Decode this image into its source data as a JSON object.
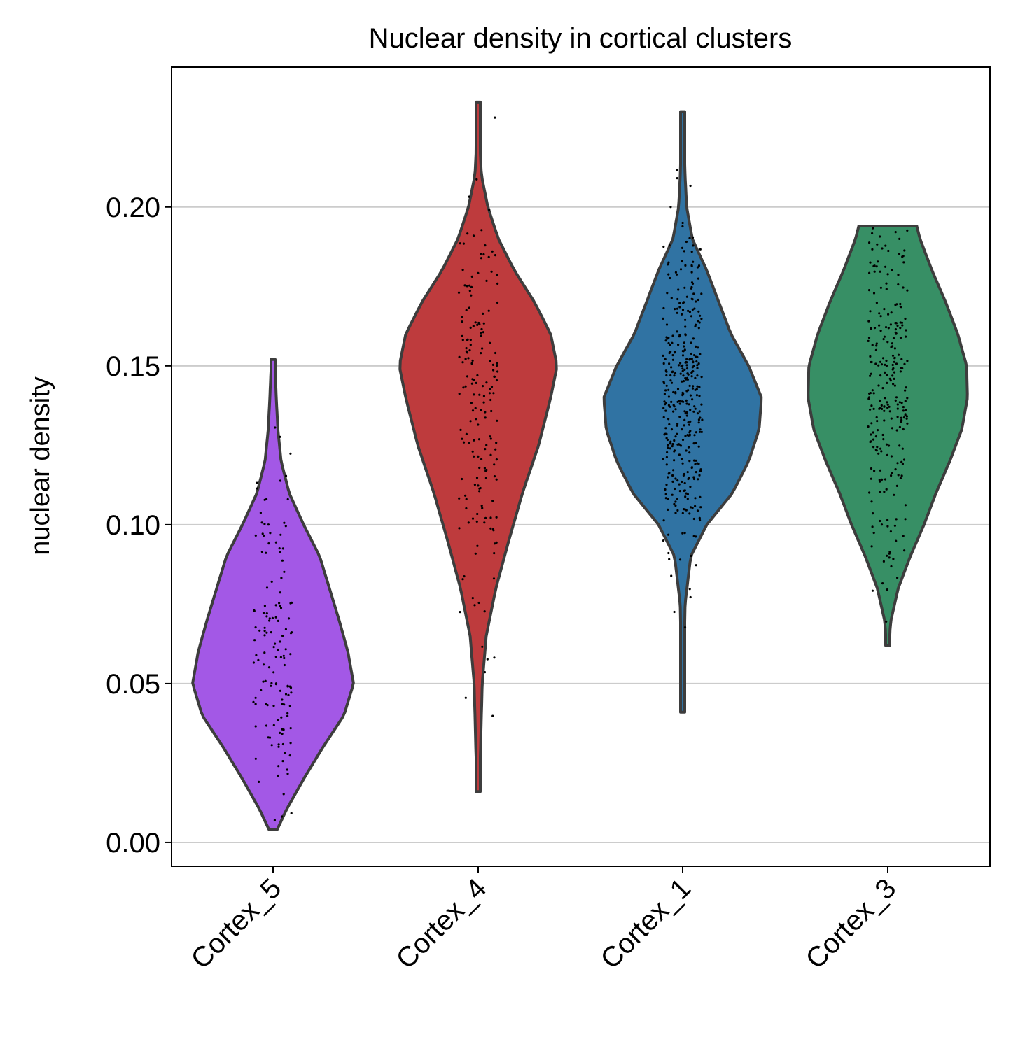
{
  "chart_data": {
    "type": "violin",
    "title": "Nuclear density in cortical clusters",
    "xlabel": "",
    "ylabel": "nuclear density",
    "ylim": [
      -0.0075,
      0.244
    ],
    "yticks": [
      0.0,
      0.05,
      0.1,
      0.15,
      0.2
    ],
    "ytick_labels": [
      "0.00",
      "0.05",
      "0.10",
      "0.15",
      "0.20"
    ],
    "grid": "horizontal",
    "categories": [
      "Cortex_5",
      "Cortex_4",
      "Cortex_1",
      "Cortex_3"
    ],
    "colors": [
      "#a358e6",
      "#be3b3d",
      "#3073a3",
      "#378f65"
    ],
    "series": [
      {
        "category": "Cortex_5",
        "min": 0.004,
        "max": 0.152,
        "n_points": 140,
        "density_profile": [
          [
            0.004,
            0.05
          ],
          [
            0.01,
            0.16
          ],
          [
            0.02,
            0.38
          ],
          [
            0.03,
            0.62
          ],
          [
            0.04,
            0.88
          ],
          [
            0.05,
            1.0
          ],
          [
            0.06,
            0.93
          ],
          [
            0.07,
            0.82
          ],
          [
            0.08,
            0.7
          ],
          [
            0.09,
            0.58
          ],
          [
            0.1,
            0.38
          ],
          [
            0.11,
            0.2
          ],
          [
            0.12,
            0.1
          ],
          [
            0.13,
            0.06
          ],
          [
            0.14,
            0.04
          ],
          [
            0.152,
            0.02
          ]
        ]
      },
      {
        "category": "Cortex_4",
        "min": 0.016,
        "max": 0.233,
        "n_points": 180,
        "density_profile": [
          [
            0.016,
            0.01
          ],
          [
            0.03,
            0.03
          ],
          [
            0.05,
            0.05
          ],
          [
            0.065,
            0.1
          ],
          [
            0.08,
            0.22
          ],
          [
            0.095,
            0.38
          ],
          [
            0.11,
            0.55
          ],
          [
            0.125,
            0.75
          ],
          [
            0.14,
            0.9
          ],
          [
            0.15,
            0.98
          ],
          [
            0.16,
            0.9
          ],
          [
            0.17,
            0.7
          ],
          [
            0.18,
            0.45
          ],
          [
            0.19,
            0.25
          ],
          [
            0.2,
            0.12
          ],
          [
            0.21,
            0.04
          ],
          [
            0.22,
            0.02
          ],
          [
            0.233,
            0.01
          ]
        ]
      },
      {
        "category": "Cortex_1",
        "min": 0.041,
        "max": 0.23,
        "n_points": 380,
        "density_profile": [
          [
            0.041,
            0.01
          ],
          [
            0.06,
            0.02
          ],
          [
            0.075,
            0.03
          ],
          [
            0.09,
            0.1
          ],
          [
            0.1,
            0.3
          ],
          [
            0.11,
            0.62
          ],
          [
            0.12,
            0.82
          ],
          [
            0.13,
            0.95
          ],
          [
            0.14,
            0.98
          ],
          [
            0.15,
            0.82
          ],
          [
            0.16,
            0.6
          ],
          [
            0.17,
            0.45
          ],
          [
            0.18,
            0.3
          ],
          [
            0.19,
            0.12
          ],
          [
            0.2,
            0.05
          ],
          [
            0.21,
            0.03
          ],
          [
            0.22,
            0.015
          ],
          [
            0.23,
            0.01
          ]
        ]
      },
      {
        "category": "Cortex_3",
        "min": 0.062,
        "max": 0.194,
        "n_points": 260,
        "density_profile": [
          [
            0.062,
            0.01
          ],
          [
            0.07,
            0.04
          ],
          [
            0.08,
            0.13
          ],
          [
            0.09,
            0.28
          ],
          [
            0.1,
            0.45
          ],
          [
            0.11,
            0.6
          ],
          [
            0.12,
            0.77
          ],
          [
            0.13,
            0.92
          ],
          [
            0.14,
            0.99
          ],
          [
            0.15,
            0.98
          ],
          [
            0.16,
            0.87
          ],
          [
            0.17,
            0.72
          ],
          [
            0.18,
            0.55
          ],
          [
            0.19,
            0.4
          ],
          [
            0.194,
            0.36
          ]
        ]
      }
    ]
  }
}
